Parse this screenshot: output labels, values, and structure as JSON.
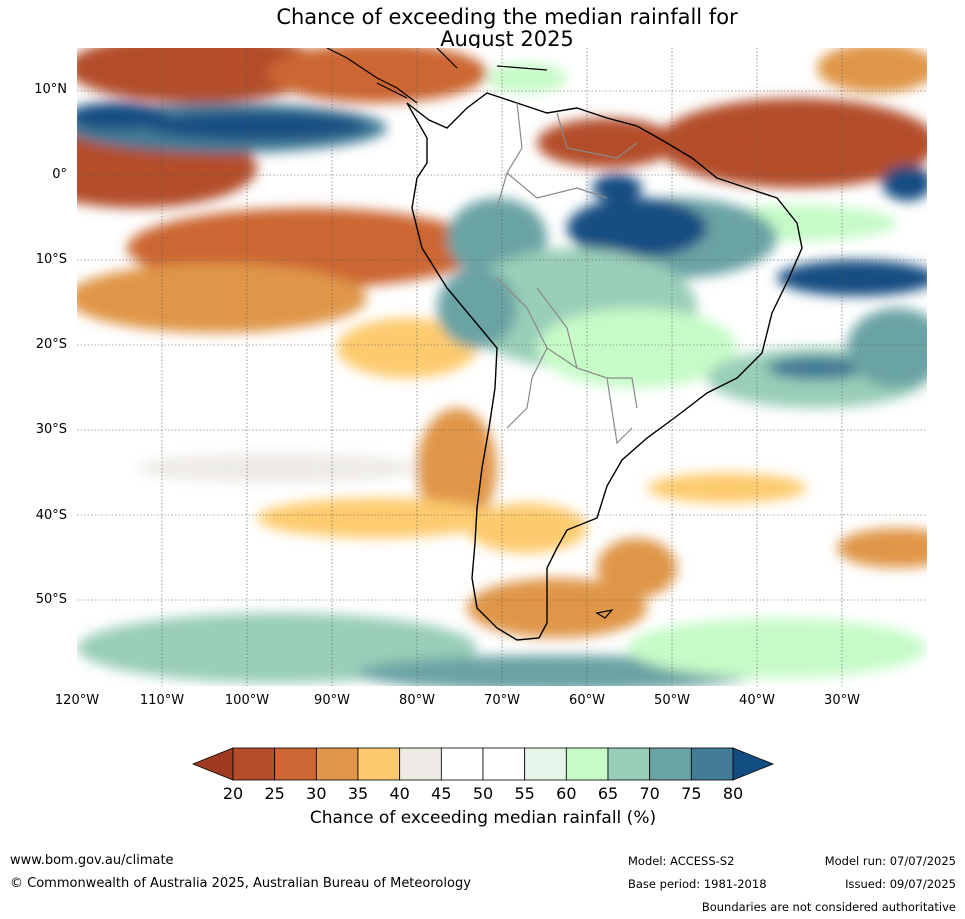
{
  "title": {
    "line1": "Chance of exceeding the median rainfall for",
    "line2": "August 2025"
  },
  "lat_labels": [
    "10°N",
    "0°",
    "10°S",
    "20°S",
    "30°S",
    "40°S",
    "50°S"
  ],
  "lon_labels": [
    "120°W",
    "110°W",
    "100°W",
    "90°W",
    "80°W",
    "70°W",
    "60°W",
    "50°W",
    "40°W",
    "30°W"
  ],
  "colorbar": {
    "ticks": [
      "20",
      "25",
      "30",
      "35",
      "40",
      "45",
      "50",
      "55",
      "60",
      "65",
      "70",
      "75",
      "80"
    ],
    "label": "Chance of exceeding median rainfall (%)",
    "colors": [
      "#9e3b22",
      "#b44d2a",
      "#cc6633",
      "#e0964a",
      "#fdcb6e",
      "#eeebe6",
      "#ffffff",
      "#ffffff",
      "#e6f5e9",
      "#c6fbc8",
      "#99ceb8",
      "#6aa3a4",
      "#437c97",
      "#134e82"
    ]
  },
  "footer": {
    "website": "www.bom.gov.au/climate",
    "copyright": "© Commonwealth of Australia 2025, Australian Bureau of Meteorology",
    "model": "Model: ACCESS-S2",
    "base_period": "Base period: 1981-2018",
    "model_run": "Model run: 07/07/2025",
    "issued": "Issued: 09/07/2025",
    "disclaimer": "Boundaries are not considered authoritative"
  }
}
